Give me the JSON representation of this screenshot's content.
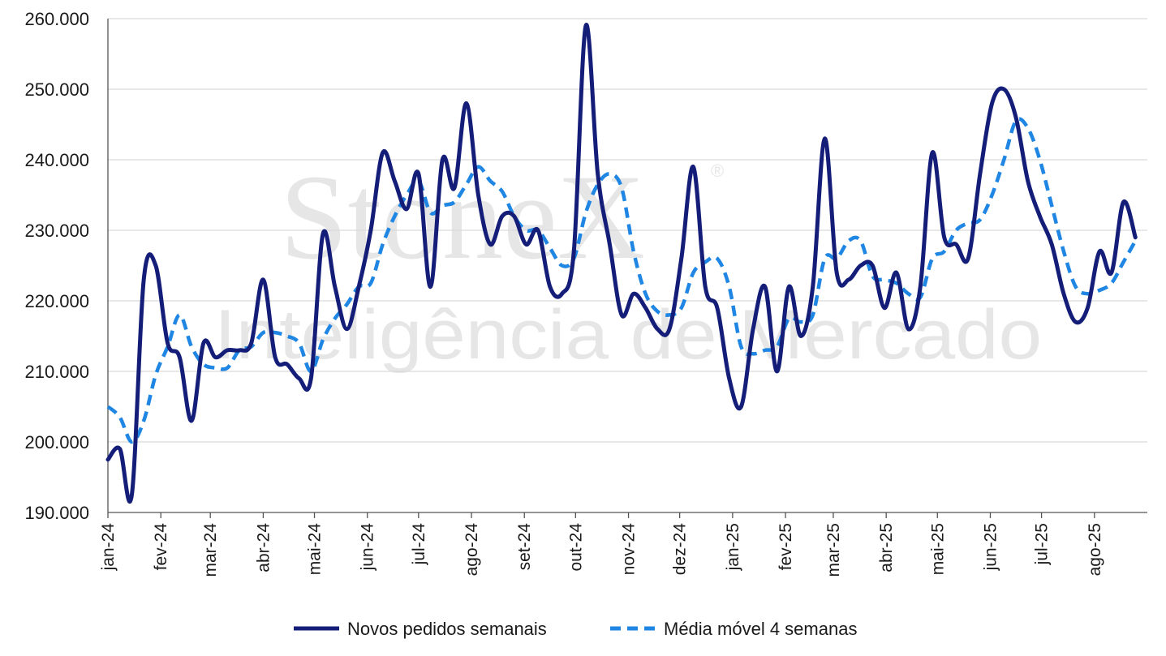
{
  "watermark": {
    "brand": "StoneX",
    "tagline": "Inteligência de Mercado",
    "registered": "®"
  },
  "colors": {
    "series_main": "#141e78",
    "series_ma": "#1f86e3",
    "grid": "#d9d9d9",
    "axis": "#555555",
    "text": "#1a1a1a",
    "watermark": "#e6e6e6"
  },
  "chart_data": {
    "type": "line",
    "title": "",
    "xlabel": "",
    "ylabel": "",
    "ylim": [
      190000,
      260000
    ],
    "yticks": [
      190000,
      200000,
      210000,
      220000,
      230000,
      240000,
      250000,
      260000
    ],
    "ytick_labels": [
      "190.000",
      "200.000",
      "210.000",
      "220.000",
      "230.000",
      "240.000",
      "250.000",
      "260.000"
    ],
    "xtick_labels": [
      "jan-24",
      "fev-24",
      "mar-24",
      "abr-24",
      "mai-24",
      "jun-24",
      "jul-24",
      "ago-24",
      "set-24",
      "out-24",
      "nov-24",
      "dez-24",
      "jan-25",
      "fev-25",
      "mar-25",
      "abr-25",
      "mai-25",
      "jun-25",
      "jul-25",
      "ago-25"
    ],
    "grid": true,
    "legend_position": "bottom-center",
    "series": [
      {
        "name": "Novos pedidos semanais",
        "style": "solid",
        "points": [
          [
            "2024-01-01",
            197500
          ],
          [
            "2024-01-08",
            199000
          ],
          [
            "2024-01-15",
            192500
          ],
          [
            "2024-01-22",
            223000
          ],
          [
            "2024-01-29",
            225000
          ],
          [
            "2024-02-05",
            214000
          ],
          [
            "2024-02-12",
            212000
          ],
          [
            "2024-02-19",
            203000
          ],
          [
            "2024-02-26",
            214000
          ],
          [
            "2024-03-04",
            212000
          ],
          [
            "2024-03-11",
            213000
          ],
          [
            "2024-03-18",
            213000
          ],
          [
            "2024-03-25",
            214000
          ],
          [
            "2024-04-01",
            223000
          ],
          [
            "2024-04-08",
            212000
          ],
          [
            "2024-04-15",
            211000
          ],
          [
            "2024-04-22",
            209000
          ],
          [
            "2024-04-29",
            209000
          ],
          [
            "2024-05-06",
            229500
          ],
          [
            "2024-05-13",
            222000
          ],
          [
            "2024-05-20",
            216000
          ],
          [
            "2024-05-27",
            222000
          ],
          [
            "2024-06-03",
            230000
          ],
          [
            "2024-06-10",
            241000
          ],
          [
            "2024-06-17",
            237000
          ],
          [
            "2024-06-24",
            233000
          ],
          [
            "2024-07-01",
            238000
          ],
          [
            "2024-07-08",
            222000
          ],
          [
            "2024-07-15",
            240000
          ],
          [
            "2024-07-22",
            236000
          ],
          [
            "2024-07-29",
            248000
          ],
          [
            "2024-08-05",
            235000
          ],
          [
            "2024-08-12",
            228000
          ],
          [
            "2024-08-19",
            232000
          ],
          [
            "2024-08-26",
            232000
          ],
          [
            "2024-09-02",
            228000
          ],
          [
            "2024-09-09",
            230000
          ],
          [
            "2024-09-16",
            222000
          ],
          [
            "2024-09-23",
            221000
          ],
          [
            "2024-09-30",
            227000
          ],
          [
            "2024-10-07",
            259000
          ],
          [
            "2024-10-14",
            238000
          ],
          [
            "2024-10-21",
            228000
          ],
          [
            "2024-10-28",
            218000
          ],
          [
            "2024-11-04",
            221000
          ],
          [
            "2024-11-11",
            219000
          ],
          [
            "2024-11-18",
            216000
          ],
          [
            "2024-11-25",
            216000
          ],
          [
            "2024-12-02",
            226000
          ],
          [
            "2024-12-09",
            239000
          ],
          [
            "2024-12-16",
            222000
          ],
          [
            "2024-12-23",
            219000
          ],
          [
            "2024-12-30",
            209000
          ],
          [
            "2025-01-06",
            205000
          ],
          [
            "2025-01-13",
            216000
          ],
          [
            "2025-01-20",
            222000
          ],
          [
            "2025-01-27",
            210000
          ],
          [
            "2025-02-03",
            222000
          ],
          [
            "2025-02-10",
            215000
          ],
          [
            "2025-02-17",
            222000
          ],
          [
            "2025-02-24",
            243000
          ],
          [
            "2025-03-03",
            224000
          ],
          [
            "2025-03-10",
            223000
          ],
          [
            "2025-03-17",
            225000
          ],
          [
            "2025-03-24",
            225000
          ],
          [
            "2025-03-31",
            219000
          ],
          [
            "2025-04-07",
            224000
          ],
          [
            "2025-04-14",
            216000
          ],
          [
            "2025-04-21",
            222000
          ],
          [
            "2025-04-28",
            241000
          ],
          [
            "2025-05-05",
            229000
          ],
          [
            "2025-05-12",
            228000
          ],
          [
            "2025-05-19",
            226000
          ],
          [
            "2025-05-26",
            238000
          ],
          [
            "2025-06-02",
            248000
          ],
          [
            "2025-06-09",
            250000
          ],
          [
            "2025-06-16",
            246000
          ],
          [
            "2025-06-23",
            237000
          ],
          [
            "2025-06-30",
            232000
          ],
          [
            "2025-07-07",
            228000
          ],
          [
            "2025-07-14",
            221000
          ],
          [
            "2025-07-21",
            217000
          ],
          [
            "2025-07-28",
            219000
          ],
          [
            "2025-08-04",
            227000
          ],
          [
            "2025-08-11",
            224000
          ],
          [
            "2025-08-18",
            234000
          ],
          [
            "2025-08-25",
            229000
          ]
        ]
      },
      {
        "name": "Média móvel 4 semanas",
        "style": "dashed",
        "points": [
          [
            "2024-01-01",
            205000
          ],
          [
            "2024-01-08",
            203500
          ],
          [
            "2024-01-15",
            200000
          ],
          [
            "2024-01-22",
            203000
          ],
          [
            "2024-01-29",
            209500
          ],
          [
            "2024-02-05",
            213500
          ],
          [
            "2024-02-12",
            218000
          ],
          [
            "2024-02-19",
            213500
          ],
          [
            "2024-02-26",
            211000
          ],
          [
            "2024-03-04",
            210500
          ],
          [
            "2024-03-11",
            210500
          ],
          [
            "2024-03-18",
            213000
          ],
          [
            "2024-03-25",
            213500
          ],
          [
            "2024-04-01",
            215500
          ],
          [
            "2024-04-08",
            215500
          ],
          [
            "2024-04-15",
            215000
          ],
          [
            "2024-04-22",
            214000
          ],
          [
            "2024-04-29",
            210000
          ],
          [
            "2024-05-06",
            214500
          ],
          [
            "2024-05-13",
            217500
          ],
          [
            "2024-05-20",
            219500
          ],
          [
            "2024-05-27",
            222000
          ],
          [
            "2024-06-03",
            222500
          ],
          [
            "2024-06-10",
            228000
          ],
          [
            "2024-06-17",
            232000
          ],
          [
            "2024-06-24",
            235000
          ],
          [
            "2024-07-01",
            237000
          ],
          [
            "2024-07-08",
            232500
          ],
          [
            "2024-07-15",
            233500
          ],
          [
            "2024-07-22",
            234000
          ],
          [
            "2024-07-29",
            236500
          ],
          [
            "2024-08-05",
            239000
          ],
          [
            "2024-08-12",
            237000
          ],
          [
            "2024-08-19",
            235500
          ],
          [
            "2024-08-26",
            232000
          ],
          [
            "2024-09-02",
            230000
          ],
          [
            "2024-09-09",
            230000
          ],
          [
            "2024-09-16",
            227500
          ],
          [
            "2024-09-23",
            225000
          ],
          [
            "2024-09-30",
            226000
          ],
          [
            "2024-10-07",
            232500
          ],
          [
            "2024-10-14",
            236500
          ],
          [
            "2024-10-21",
            238000
          ],
          [
            "2024-10-28",
            236000
          ],
          [
            "2024-11-04",
            227000
          ],
          [
            "2024-11-11",
            221000
          ],
          [
            "2024-11-18",
            218500
          ],
          [
            "2024-11-25",
            218000
          ],
          [
            "2024-12-02",
            219000
          ],
          [
            "2024-12-09",
            224000
          ],
          [
            "2024-12-16",
            225500
          ],
          [
            "2024-12-23",
            226000
          ],
          [
            "2024-12-30",
            222000
          ],
          [
            "2025-01-06",
            213500
          ],
          [
            "2025-01-13",
            212500
          ],
          [
            "2025-01-20",
            213000
          ],
          [
            "2025-01-27",
            213500
          ],
          [
            "2025-02-03",
            217500
          ],
          [
            "2025-02-10",
            217000
          ],
          [
            "2025-02-17",
            218000
          ],
          [
            "2025-02-24",
            226000
          ],
          [
            "2025-03-03",
            226000
          ],
          [
            "2025-03-10",
            228500
          ],
          [
            "2025-03-17",
            228500
          ],
          [
            "2025-03-24",
            223500
          ],
          [
            "2025-03-31",
            223000
          ],
          [
            "2025-04-07",
            222500
          ],
          [
            "2025-04-14",
            221000
          ],
          [
            "2025-04-21",
            220500
          ],
          [
            "2025-04-28",
            226000
          ],
          [
            "2025-05-05",
            227000
          ],
          [
            "2025-05-12",
            230000
          ],
          [
            "2025-05-19",
            231000
          ],
          [
            "2025-05-26",
            231500
          ],
          [
            "2025-06-02",
            235000
          ],
          [
            "2025-06-09",
            240000
          ],
          [
            "2025-06-16",
            245500
          ],
          [
            "2025-06-23",
            244500
          ],
          [
            "2025-06-30",
            240000
          ],
          [
            "2025-07-07",
            233500
          ],
          [
            "2025-07-14",
            227000
          ],
          [
            "2025-07-21",
            222000
          ],
          [
            "2025-07-28",
            221000
          ],
          [
            "2025-08-04",
            221500
          ],
          [
            "2025-08-11",
            222500
          ],
          [
            "2025-08-18",
            225500
          ],
          [
            "2025-08-25",
            228500
          ]
        ]
      }
    ]
  }
}
